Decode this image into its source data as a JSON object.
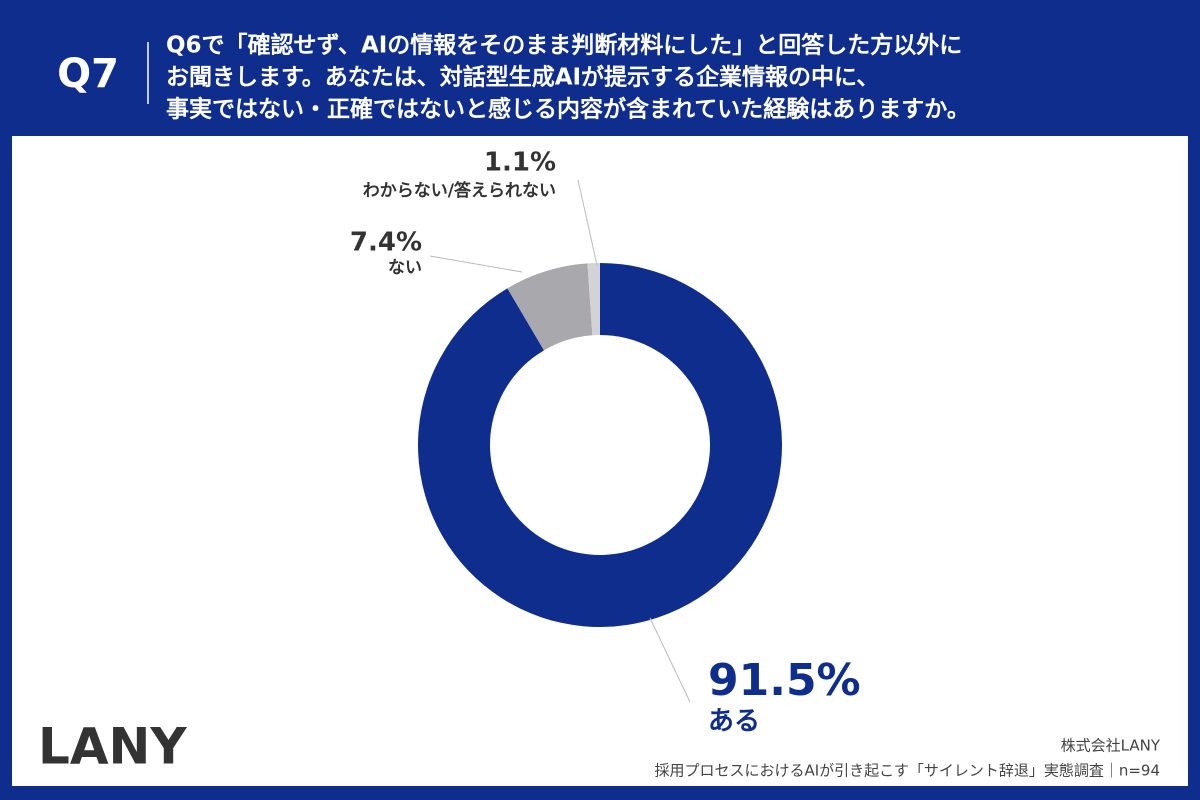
{
  "question_number": "Q7",
  "brand": "LANY",
  "company": "株式会社LANY",
  "source": "採用プロセスにおけるAIが引き起こす「サイレント辞退」実態調査｜n=94",
  "chart_data": {
    "type": "donut",
    "title": [
      "Q6で「確認せず、AIの情報をそのまま判断材料にした」と回答した方以外に",
      "お聞きします。あなたは、対話型生成AIが提示する企業情報の中に、",
      "事実ではない・正確ではないと感じる内容が含まれていた経験はありますか。"
    ],
    "categories": [
      "ある",
      "ない",
      "わからない/答えられない"
    ],
    "values": [
      91.5,
      7.4,
      1.1
    ],
    "value_labels": [
      "91.5%",
      "7.4%",
      "1.1%"
    ],
    "colors": [
      "#0f2d8c",
      "#a9a9ad",
      "#d3d3d6"
    ]
  }
}
